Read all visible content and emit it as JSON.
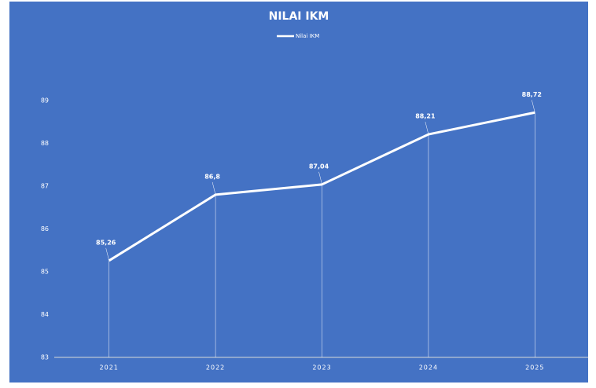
{
  "chart_data": {
    "type": "line",
    "title": "NILAI IKM",
    "categories": [
      "2021",
      "2022",
      "2023",
      "2024",
      "2025"
    ],
    "series": [
      {
        "name": "Nilai IKM",
        "color": "#ffffff",
        "values": [
          85.26,
          86.8,
          87.04,
          88.21,
          88.72
        ],
        "value_labels": [
          "85,26",
          "86,8",
          "87,04",
          "88,21",
          "88,72"
        ]
      }
    ],
    "ylim": [
      83,
      89
    ],
    "yticks": [
      83,
      84,
      85,
      86,
      87,
      88,
      89
    ],
    "grid": false,
    "drop_lines": true,
    "legend": "top",
    "background": "#4472c4"
  }
}
